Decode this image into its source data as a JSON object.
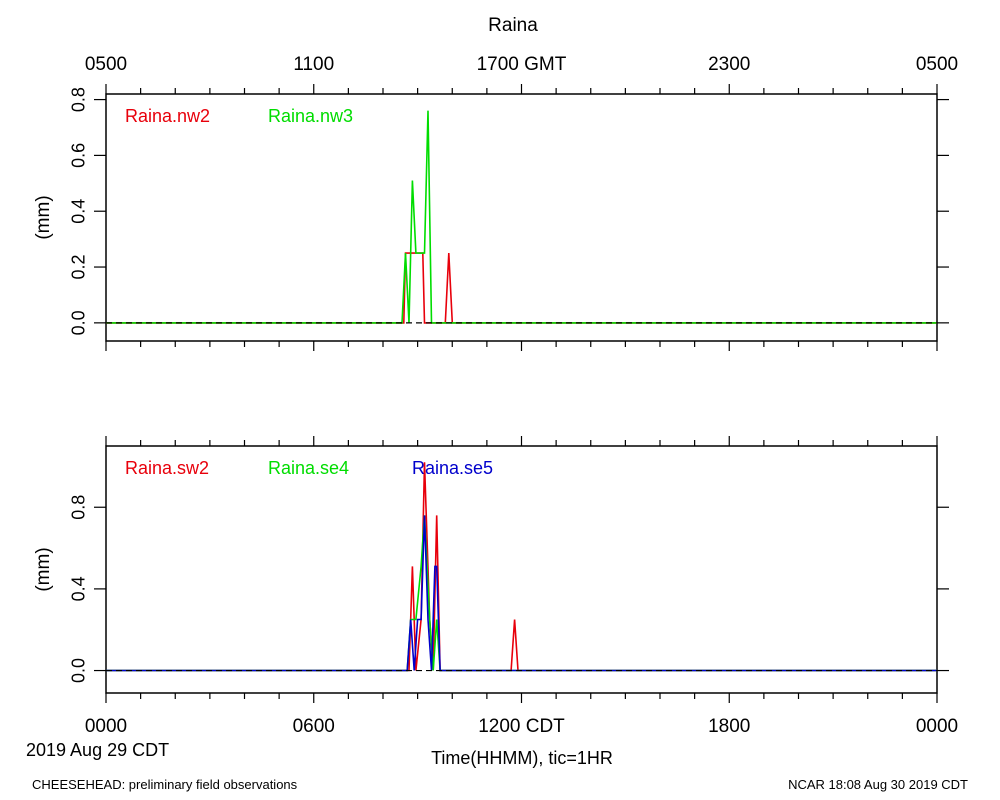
{
  "page": {
    "title": "Raina",
    "top_axis_ticks": [
      "0500",
      "1100",
      "1700 GMT",
      "2300",
      "0500"
    ],
    "bottom_axis_ticks": [
      "0000",
      "0600",
      "1200 CDT",
      "1800",
      "0000"
    ],
    "date_label": "2019 Aug 29 CDT",
    "xlabel": "Time(HHMM), tic=1HR",
    "footer_left": "CHEESEHEAD: preliminary field observations",
    "footer_right": "NCAR 18:08 Aug 30 2019 CDT"
  },
  "colors": {
    "red": "#e8000b",
    "green": "#00dd00",
    "blue": "#0000cc",
    "axis": "#000000"
  },
  "chart_data": [
    {
      "type": "line",
      "ylabel": "(mm)",
      "xlim": [
        0,
        24
      ],
      "ylim": [
        -0.065,
        0.82
      ],
      "yticks": [
        0.0,
        0.2,
        0.4,
        0.6,
        0.8
      ],
      "ytick_labels": [
        "0.0",
        "0.2",
        "0.4",
        "0.6",
        "0.8"
      ],
      "series": [
        {
          "name": "Raina.nw2",
          "color": "#e8000b",
          "x": [
            0,
            8.6,
            8.65,
            8.75,
            9.1,
            9.15,
            9.2,
            9.5,
            9.6,
            9.8,
            9.9,
            10.0,
            24
          ],
          "y": [
            0,
            0,
            0.25,
            0.25,
            0.25,
            0.25,
            0,
            0,
            0,
            0,
            0.25,
            0,
            0
          ]
        },
        {
          "name": "Raina.nw3",
          "color": "#00dd00",
          "x": [
            0,
            8.55,
            8.65,
            8.75,
            8.85,
            8.95,
            9.1,
            9.2,
            9.3,
            9.4,
            9.5,
            24
          ],
          "y": [
            0,
            0,
            0.25,
            0,
            0.51,
            0.25,
            0.25,
            0.25,
            0.76,
            0,
            0,
            0
          ]
        }
      ]
    },
    {
      "type": "line",
      "ylabel": "(mm)",
      "xlim": [
        0,
        24
      ],
      "ylim": [
        -0.11,
        1.1
      ],
      "yticks": [
        0.0,
        0.4,
        0.8
      ],
      "ytick_labels": [
        "0.0",
        "0.4",
        "0.8"
      ],
      "series": [
        {
          "name": "Raina.sw2",
          "color": "#e8000b",
          "x": [
            0,
            8.75,
            8.85,
            8.95,
            9.1,
            9.2,
            9.35,
            9.45,
            9.55,
            9.65,
            9.75,
            11.7,
            11.8,
            11.9,
            24
          ],
          "y": [
            0,
            0,
            0.51,
            0,
            0.25,
            1.02,
            0.25,
            0,
            0.76,
            0,
            0,
            0,
            0.25,
            0,
            0
          ]
        },
        {
          "name": "Raina.se4",
          "color": "#00dd00",
          "x": [
            0,
            8.7,
            8.8,
            8.95,
            9.1,
            9.2,
            9.35,
            9.45,
            9.55,
            9.65,
            24
          ],
          "y": [
            0,
            0,
            0.25,
            0.25,
            0.51,
            0.76,
            0.25,
            0,
            0.25,
            0,
            0
          ]
        },
        {
          "name": "Raina.se5",
          "color": "#0000cc",
          "x": [
            0,
            8.7,
            8.8,
            8.9,
            9.0,
            9.1,
            9.2,
            9.3,
            9.4,
            9.5,
            9.55,
            9.65,
            9.75,
            9.85,
            24
          ],
          "y": [
            0,
            0,
            0.25,
            0,
            0.25,
            0.25,
            0.76,
            0.25,
            0,
            0.51,
            0.51,
            0,
            0,
            0,
            0
          ]
        }
      ]
    }
  ]
}
